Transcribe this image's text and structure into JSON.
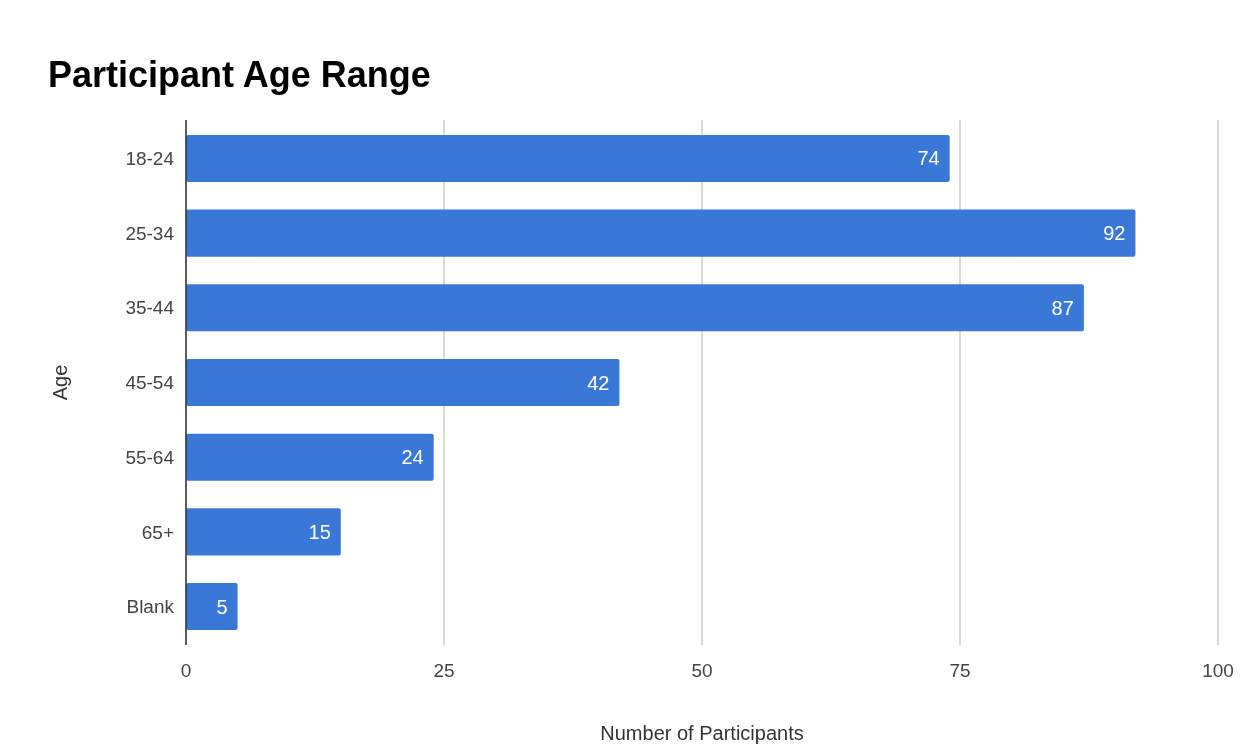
{
  "chart_data": {
    "type": "bar",
    "orientation": "horizontal",
    "title": "Participant Age Range",
    "xlabel": "Number of Participants",
    "ylabel": "Age",
    "categories": [
      "18-24",
      "25-34",
      "35-44",
      "45-54",
      "55-64",
      "65+",
      "Blank"
    ],
    "values": [
      74,
      92,
      87,
      42,
      24,
      15,
      5
    ],
    "color": "#3a78d8",
    "xlim": [
      0,
      100
    ],
    "xticks": [
      0,
      25,
      50,
      75,
      100
    ],
    "grid": "x",
    "data_labels": true
  }
}
